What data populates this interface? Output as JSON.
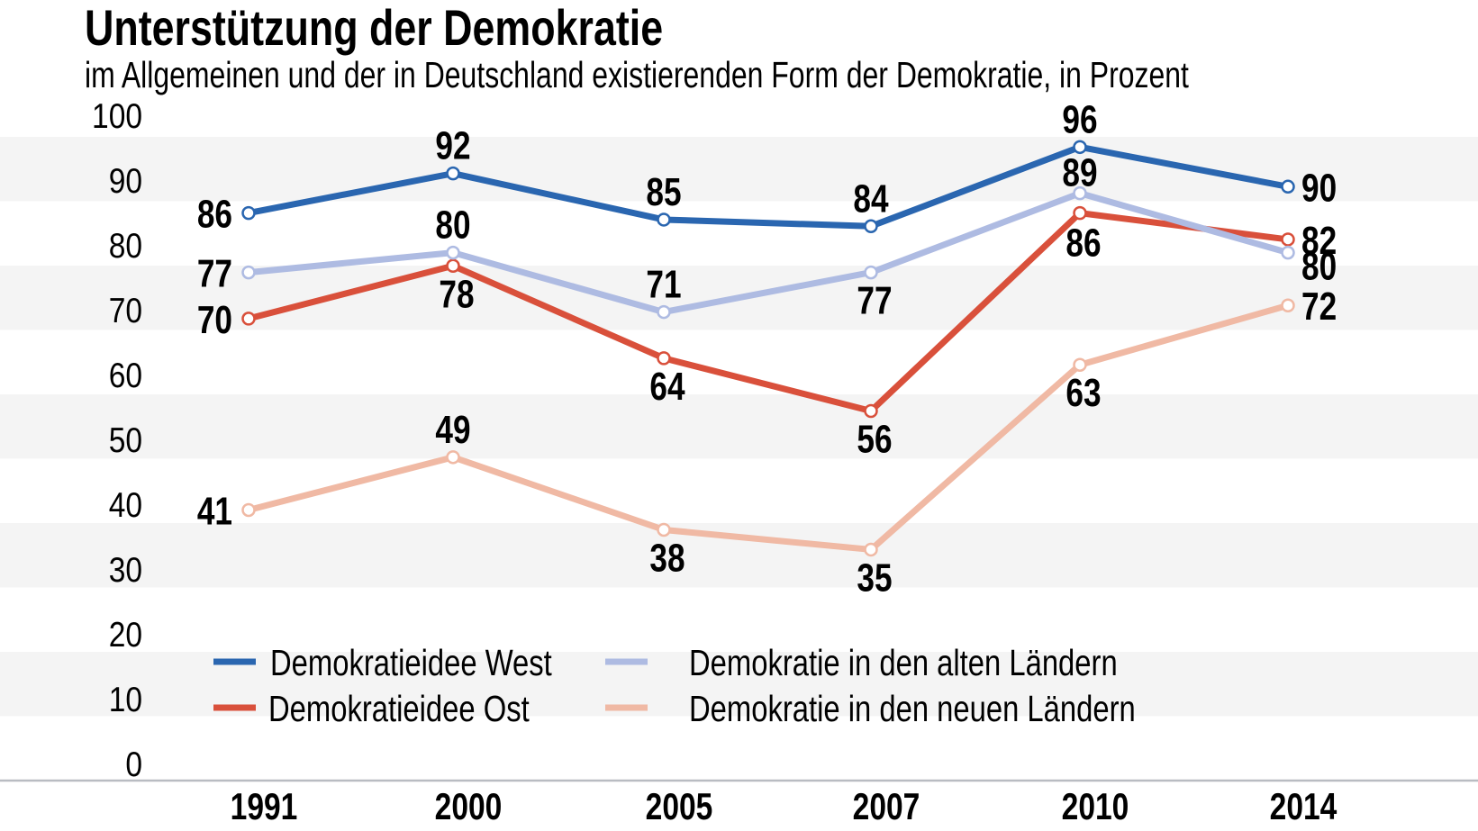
{
  "chart_data": {
    "type": "line",
    "title": "Unterstützung der Demokratie",
    "subtitle": "im Allgemeinen und der in Deutschland existierenden Form der Demokratie, in Prozent",
    "xlabel": "",
    "ylabel": "",
    "categories": [
      "1991",
      "2000",
      "2005",
      "2007",
      "2010",
      "2014"
    ],
    "ylim": [
      0,
      100
    ],
    "yticks": [
      "0",
      "10",
      "20",
      "30",
      "40",
      "50",
      "60",
      "70",
      "80",
      "90",
      "100"
    ],
    "grid": "alternating horizontal bands",
    "legend_position": "bottom-left inside plot",
    "series": [
      {
        "name": "Demokratieidee West",
        "color": "#2a66b0",
        "values": [
          86,
          92,
          85,
          84,
          96,
          90
        ]
      },
      {
        "name": "Demokratie in den alten Ländern",
        "color": "#aebbe2",
        "values": [
          77,
          80,
          71,
          77,
          89,
          80
        ]
      },
      {
        "name": "Demokratieidee Ost",
        "color": "#d9503b",
        "values": [
          70,
          78,
          64,
          56,
          86,
          82
        ]
      },
      {
        "name": "Demokratie in den neuen Ländern",
        "color": "#f0b9a4",
        "values": [
          41,
          49,
          38,
          35,
          63,
          72
        ]
      }
    ],
    "legend": [
      {
        "label": "Demokratieidee West",
        "color": "#2a66b0"
      },
      {
        "label": "Demokratieidee Ost",
        "color": "#d9503b"
      },
      {
        "label": "Demokratie in den alten Ländern",
        "color": "#aebbe2"
      },
      {
        "label": "Demokratie in den neuen Ländern",
        "color": "#f0b9a4"
      }
    ]
  },
  "colors": {
    "band": "#f4f4f4",
    "axis": "#b9bcc2",
    "text": "#000000"
  }
}
